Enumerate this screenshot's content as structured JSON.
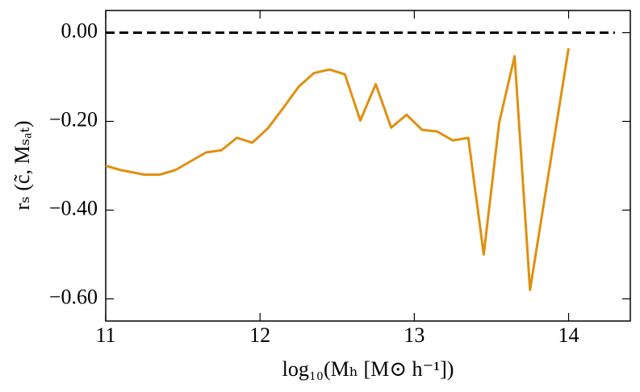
{
  "chart_data": {
    "type": "line",
    "xlabel": "log₁₀(Mₕ [M⊙ h⁻¹])",
    "ylabel": "rₛ (c̃, Mₛₐₜ)",
    "x": [
      11.0,
      11.1,
      11.25,
      11.35,
      11.45,
      11.55,
      11.65,
      11.75,
      11.85,
      11.95,
      12.05,
      12.15,
      12.25,
      12.35,
      12.45,
      12.55,
      12.65,
      12.75,
      12.85,
      12.95,
      13.05,
      13.15,
      13.25,
      13.35,
      13.45,
      13.55,
      13.65,
      13.75,
      14.0
    ],
    "series": [
      {
        "color": "#e0900f",
        "values": [
          -0.3,
          -0.31,
          -0.32,
          -0.32,
          -0.31,
          -0.29,
          -0.27,
          -0.265,
          -0.237,
          -0.248,
          -0.216,
          -0.17,
          -0.122,
          -0.091,
          -0.083,
          -0.094,
          -0.198,
          -0.116,
          -0.214,
          -0.185,
          -0.219,
          -0.223,
          -0.243,
          -0.237,
          -0.5,
          -0.203,
          -0.053,
          -0.58,
          -0.035
        ]
      }
    ],
    "hline": {
      "y": 0,
      "x": [
        11,
        14.3
      ],
      "color": "#000000"
    },
    "xlim": [
      11,
      14.4
    ],
    "ylim": [
      -0.65,
      0.05
    ],
    "xticks": [
      11,
      12,
      13,
      14
    ],
    "yticks": [
      {
        "value": 0,
        "label": "0.00"
      },
      {
        "value": -0.2,
        "label": "−0.20"
      },
      {
        "value": -0.4,
        "label": "−0.40"
      },
      {
        "value": -0.6,
        "label": "−0.60"
      }
    ]
  }
}
